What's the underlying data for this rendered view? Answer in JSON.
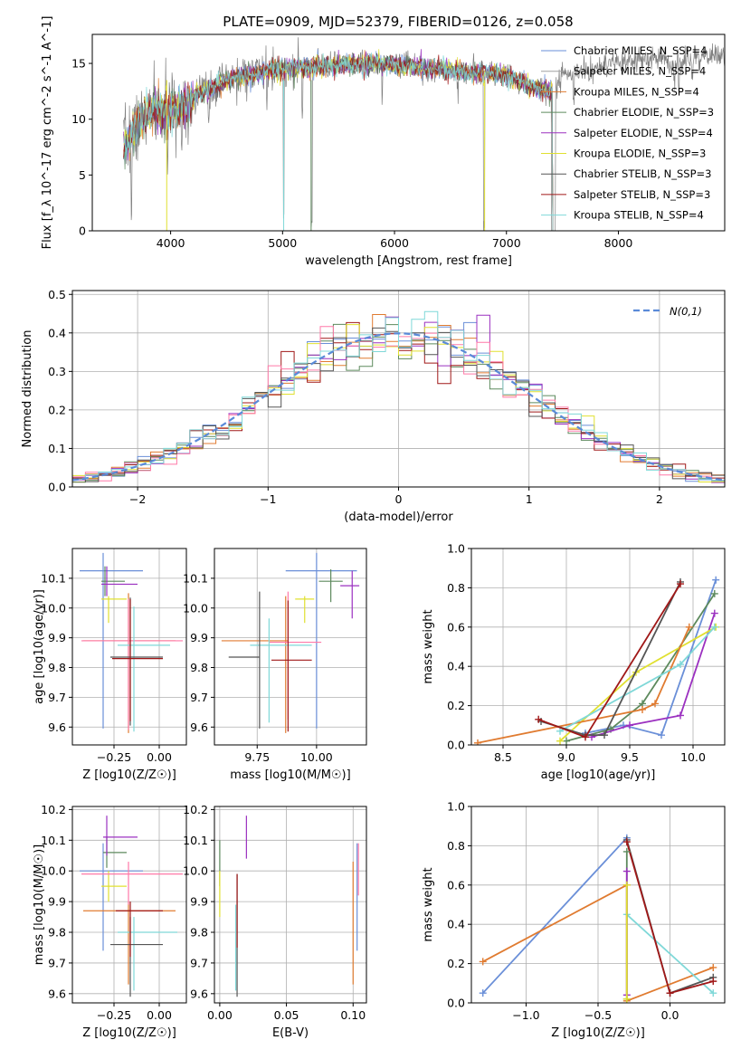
{
  "figure": {
    "title": "PLATE=0909, MJD=52379, FIBERID=0126, z=0.058"
  },
  "chart_data": [
    {
      "type": "line",
      "name": "spectrum",
      "xlabel": "wavelength [Angstrom, rest frame]",
      "ylabel": "Flux [f_λ 10^-17 erg cm^-2 s^-1 A^-1]",
      "xlim": [
        3300,
        8950
      ],
      "ylim": [
        0,
        17.6
      ],
      "xticks": [
        4000,
        5000,
        6000,
        7000,
        8000
      ],
      "yticks": [
        0,
        5,
        10,
        15
      ],
      "grid": false,
      "legend_position": "top-right",
      "continuum_knots": {
        "x": [
          3570,
          3650,
          3750,
          3850,
          3950,
          4050,
          4200,
          4400,
          4600,
          4800,
          5000,
          5200,
          5500,
          5800,
          6100,
          6400,
          6700,
          7000,
          7100,
          7200,
          7400,
          7430
        ],
        "y": [
          7.5,
          8.5,
          10.0,
          11.0,
          10.5,
          11.0,
          12.0,
          13.0,
          13.8,
          14.2,
          14.5,
          14.6,
          14.8,
          15.0,
          14.8,
          14.5,
          14.2,
          14.0,
          13.5,
          13.0,
          12.5,
          12.5
        ]
      },
      "data_only_knots": {
        "x": [
          7430,
          7500,
          7800,
          8000,
          8200,
          8400,
          8500,
          8700,
          8950
        ],
        "y": [
          12.5,
          14.0,
          14.5,
          15.0,
          15.2,
          15.5,
          15.0,
          15.5,
          15.8
        ]
      },
      "absorption_dips": [
        {
          "x": 5010,
          "depth": 14.0
        },
        {
          "x": 5260,
          "depth": 14.0
        },
        {
          "x": 6800,
          "depth": 14.0
        },
        {
          "x": 3650,
          "depth": 8.5
        },
        {
          "x": 3970,
          "depth": 4.0
        },
        {
          "x": 4100,
          "depth": 3.0
        },
        {
          "x": 4340,
          "depth": 2.5
        },
        {
          "x": 4860,
          "depth": 3.0
        },
        {
          "x": 5175,
          "depth": 4.0
        },
        {
          "x": 5890,
          "depth": 2.5
        },
        {
          "x": 6563,
          "depth": 2.0
        },
        {
          "x": 7600,
          "depth": 3.0
        },
        {
          "x": 8500,
          "depth": 2.0
        },
        {
          "x": 8540,
          "depth": 2.0
        },
        {
          "x": 8660,
          "depth": 2.0
        }
      ],
      "legend": [
        "Chabrier MILES, N_SSP=4",
        "Salpeter MILES, N_SSP=4",
        "Kroupa MILES, N_SSP=4",
        "Chabrier ELODIE, N_SSP=3",
        "Salpeter ELODIE, N_SSP=4",
        "Kroupa ELODIE, N_SSP=3",
        "Chabrier STELIB, N_SSP=3",
        "Salpeter STELIB, N_SSP=3",
        "Kroupa STELIB, N_SSP=4"
      ],
      "series_colors": [
        "#6a8fd8",
        "#a0a0a0",
        "#e07b30",
        "#5d8a5d",
        "#9b30c0",
        "#e0e030",
        "#555555",
        "#a01818",
        "#7fd8d8"
      ]
    },
    {
      "type": "histogram",
      "name": "residuals",
      "xlabel": "(data-model)/error",
      "ylabel": "Normed distribution",
      "xlim": [
        -2.5,
        2.5
      ],
      "ylim": [
        0,
        0.51
      ],
      "xticks": [
        -2,
        -1,
        0,
        1,
        2
      ],
      "yticks": [
        0.0,
        0.1,
        0.2,
        0.3,
        0.4,
        0.5
      ],
      "grid": true,
      "bin_width": 0.1,
      "reference_curve": {
        "label": "N(0,1)",
        "type": "gaussian",
        "mean": 0,
        "sigma": 1,
        "color": "#5a8ad8"
      },
      "legend_position": "top-right"
    },
    {
      "type": "scatter",
      "name": "age-vs-Z",
      "xlabel": "Z [log10(Z/Z☉)]",
      "ylabel": "age [log10(age/yr)]",
      "xlim": [
        -0.48,
        0.15
      ],
      "ylim": [
        9.54,
        10.2
      ],
      "xticks": [
        -0.25,
        0.0
      ],
      "yticks": [
        9.6,
        9.7,
        9.8,
        9.9,
        10.0,
        10.1
      ],
      "grid": true,
      "errorbars": [
        {
          "x": -0.31,
          "y": 10.125,
          "xerr": [
            0.13,
            0.22
          ],
          "yerr": [
            0.53,
            0.06
          ],
          "color": "#6a8fd8"
        },
        {
          "x": -0.3,
          "y": 10.09,
          "xerr": [
            0.02,
            0.11
          ],
          "yerr": [
            0.05,
            0.05
          ],
          "color": "#5d8a5d"
        },
        {
          "x": -0.29,
          "y": 10.08,
          "xerr": [
            0.03,
            0.17
          ],
          "yerr": [
            0.04,
            0.06
          ],
          "color": "#9b30c0"
        },
        {
          "x": -0.28,
          "y": 10.03,
          "xerr": [
            0.04,
            0.1
          ],
          "yerr": [
            0.08,
            0.01
          ],
          "color": "#e0e030"
        },
        {
          "x": -0.17,
          "y": 9.89,
          "xerr": [
            0.25,
            0.26
          ],
          "yerr": [
            0.31,
            0.16
          ],
          "color": "#e07b30"
        },
        {
          "x": -0.17,
          "y": 9.89,
          "xerr": [
            0.26,
            0.3
          ],
          "yerr": [
            0.3,
            0.14
          ],
          "color": "#ff79a8"
        },
        {
          "x": -0.14,
          "y": 9.875,
          "xerr": [
            0.09,
            0.2
          ],
          "yerr": [
            0.29,
            0.13
          ],
          "color": "#7fd8d8"
        },
        {
          "x": -0.16,
          "y": 9.835,
          "xerr": [
            0.11,
            0.18
          ],
          "yerr": [
            0.23,
            0.2
          ],
          "color": "#555555"
        },
        {
          "x": -0.16,
          "y": 9.83,
          "xerr": [
            0.1,
            0.18
          ],
          "yerr": [
            0.21,
            0.2
          ],
          "color": "#a01818"
        }
      ]
    },
    {
      "type": "scatter",
      "name": "age-vs-mass",
      "xlabel": "mass [log10(M/M☉)]",
      "ylabel": "",
      "xlim": [
        9.57,
        10.21
      ],
      "ylim": [
        9.54,
        10.2
      ],
      "xticks": [
        9.75,
        10.0
      ],
      "yticks": [
        9.6,
        9.7,
        9.8,
        9.9,
        10.0,
        10.1
      ],
      "grid": true,
      "errorbars": [
        {
          "x": 10.0,
          "y": 10.125,
          "xerr": [
            0.13,
            0.17
          ],
          "yerr": [
            0.53,
            0.06
          ],
          "color": "#6a8fd8"
        },
        {
          "x": 10.06,
          "y": 10.09,
          "xerr": [
            0.05,
            0.05
          ],
          "yerr": [
            0.07,
            0.04
          ],
          "color": "#5d8a5d"
        },
        {
          "x": 10.15,
          "y": 10.075,
          "xerr": [
            0.05,
            0.03
          ],
          "yerr": [
            0.11,
            0.05
          ],
          "color": "#9b30c0"
        },
        {
          "x": 9.95,
          "y": 10.03,
          "xerr": [
            0.04,
            0.04
          ],
          "yerr": [
            0.08,
            0.01
          ],
          "color": "#e0e030"
        },
        {
          "x": 9.87,
          "y": 9.89,
          "xerr": [
            0.27,
            0.01
          ],
          "yerr": [
            0.31,
            0.15
          ],
          "color": "#e07b30"
        },
        {
          "x": 9.88,
          "y": 9.885,
          "xerr": [
            0.08,
            0.14
          ],
          "yerr": [
            0.26,
            0.17
          ],
          "color": "#ff79a8"
        },
        {
          "x": 9.8,
          "y": 9.875,
          "xerr": [
            0.08,
            0.18
          ],
          "yerr": [
            0.26,
            0.09
          ],
          "color": "#7fd8d8"
        },
        {
          "x": 9.76,
          "y": 9.835,
          "xerr": [
            0.13,
            0.0
          ],
          "yerr": [
            0.24,
            0.22
          ],
          "color": "#555555"
        },
        {
          "x": 9.88,
          "y": 9.825,
          "xerr": [
            0.07,
            0.1
          ],
          "yerr": [
            0.24,
            0.2
          ],
          "color": "#a01818"
        }
      ]
    },
    {
      "type": "line",
      "name": "massweight-vs-age",
      "xlabel": "age [log10(age/yr)]",
      "ylabel": "mass weight",
      "xlim": [
        8.25,
        10.25
      ],
      "ylim": [
        0,
        1
      ],
      "xticks": [
        8.5,
        9.0,
        9.5,
        10.0
      ],
      "yticks": [
        0.0,
        0.2,
        0.4,
        0.6,
        0.8,
        1.0
      ],
      "grid": true,
      "series": [
        {
          "color": "#6a8fd8",
          "points": [
            [
              9.15,
              0.06
            ],
            [
              9.45,
              0.1
            ],
            [
              9.75,
              0.05
            ],
            [
              10.18,
              0.84
            ]
          ]
        },
        {
          "color": "#5d8a5d",
          "points": [
            [
              9.0,
              0.02
            ],
            [
              9.35,
              0.08
            ],
            [
              9.6,
              0.21
            ],
            [
              10.17,
              0.77
            ]
          ]
        },
        {
          "color": "#9b30c0",
          "points": [
            [
              9.2,
              0.04
            ],
            [
              9.5,
              0.1
            ],
            [
              9.9,
              0.15
            ],
            [
              10.17,
              0.67
            ]
          ]
        },
        {
          "color": "#e0e030",
          "points": [
            [
              8.95,
              0.02
            ],
            [
              9.55,
              0.37
            ],
            [
              10.18,
              0.6
            ]
          ]
        },
        {
          "color": "#e07b30",
          "points": [
            [
              8.3,
              0.01
            ],
            [
              9.6,
              0.18
            ],
            [
              9.7,
              0.21
            ],
            [
              9.97,
              0.6
            ]
          ]
        },
        {
          "color": "#7fd8d8",
          "points": [
            [
              8.95,
              0.07
            ],
            [
              9.9,
              0.41
            ],
            [
              10.17,
              0.6
            ]
          ]
        },
        {
          "color": "#555555",
          "points": [
            [
              8.8,
              0.12
            ],
            [
              9.15,
              0.05
            ],
            [
              9.3,
              0.05
            ],
            [
              9.9,
              0.83
            ]
          ]
        },
        {
          "color": "#a01818",
          "points": [
            [
              8.78,
              0.13
            ],
            [
              9.15,
              0.04
            ],
            [
              9.9,
              0.82
            ]
          ]
        }
      ]
    },
    {
      "type": "scatter",
      "name": "mass-vs-Z",
      "xlabel": "Z [log10(Z/Z☉)]",
      "ylabel": "mass [log10(M/M☉)]",
      "xlim": [
        -0.48,
        0.15
      ],
      "ylim": [
        9.57,
        10.21
      ],
      "xticks": [
        -0.25,
        0.0
      ],
      "yticks": [
        9.6,
        9.7,
        9.8,
        9.9,
        10.0,
        10.1,
        10.2
      ],
      "grid": true,
      "errorbars": [
        {
          "x": -0.31,
          "y": 10.0,
          "xerr": [
            0.13,
            0.22
          ],
          "yerr": [
            0.26,
            0.09
          ],
          "color": "#6a8fd8"
        },
        {
          "x": -0.29,
          "y": 10.06,
          "xerr": [
            0.02,
            0.11
          ],
          "yerr": [
            0.05,
            0.05
          ],
          "color": "#5d8a5d"
        },
        {
          "x": -0.29,
          "y": 10.11,
          "xerr": [
            0.02,
            0.17
          ],
          "yerr": [
            0.06,
            0.07
          ],
          "color": "#9b30c0"
        },
        {
          "x": -0.28,
          "y": 9.95,
          "xerr": [
            0.04,
            0.1
          ],
          "yerr": [
            0.05,
            0.05
          ],
          "color": "#e0e030"
        },
        {
          "x": -0.17,
          "y": 9.87,
          "xerr": [
            0.25,
            0.26
          ],
          "yerr": [
            0.24,
            0.03
          ],
          "color": "#e07b30"
        },
        {
          "x": -0.17,
          "y": 9.99,
          "xerr": [
            0.26,
            0.3
          ],
          "yerr": [
            0.1,
            0.04
          ],
          "color": "#ff79a8"
        },
        {
          "x": -0.14,
          "y": 9.8,
          "xerr": [
            0.09,
            0.24
          ],
          "yerr": [
            0.19,
            0.05
          ],
          "color": "#7fd8d8"
        },
        {
          "x": -0.16,
          "y": 9.76,
          "xerr": [
            0.11,
            0.18
          ],
          "yerr": [
            0.17,
            0.09
          ],
          "color": "#555555"
        },
        {
          "x": -0.16,
          "y": 9.87,
          "xerr": [
            0.08,
            0.18
          ],
          "yerr": [
            0.15,
            0.03
          ],
          "color": "#a01818"
        }
      ]
    },
    {
      "type": "scatter",
      "name": "mass-vs-EBV",
      "xlabel": "E(B-V)",
      "ylabel": "",
      "xlim": [
        -0.004,
        0.11
      ],
      "ylim": [
        9.57,
        10.21
      ],
      "xticks": [
        0.0,
        0.05,
        0.1
      ],
      "yticks": [
        9.6,
        9.7,
        9.8,
        9.9,
        10.0,
        10.1,
        10.2
      ],
      "grid": true,
      "errorbars": [
        {
          "x": 0.0,
          "y": 10.05,
          "xerr": [
            0,
            0
          ],
          "yerr": [
            0.1,
            0.05
          ],
          "color": "#5d8a5d"
        },
        {
          "x": 0.0,
          "y": 9.93,
          "xerr": [
            0,
            0
          ],
          "yerr": [
            0.08,
            0.07
          ],
          "color": "#e0e030"
        },
        {
          "x": 0.012,
          "y": 9.75,
          "xerr": [
            0,
            0
          ],
          "yerr": [
            0.14,
            0.14
          ],
          "color": "#7fd8d8"
        },
        {
          "x": 0.013,
          "y": 9.78,
          "xerr": [
            0,
            0
          ],
          "yerr": [
            0.19,
            0.21
          ],
          "color": "#555555"
        },
        {
          "x": 0.013,
          "y": 9.85,
          "xerr": [
            0,
            0
          ],
          "yerr": [
            0.1,
            0.14
          ],
          "color": "#a01818"
        },
        {
          "x": 0.02,
          "y": 10.11,
          "xerr": [
            0,
            0
          ],
          "yerr": [
            0.07,
            0.07
          ],
          "color": "#9b30c0"
        },
        {
          "x": 0.1,
          "y": 9.84,
          "xerr": [
            0,
            0
          ],
          "yerr": [
            0.21,
            0.19
          ],
          "color": "#e07b30"
        },
        {
          "x": 0.103,
          "y": 9.96,
          "xerr": [
            0,
            0
          ],
          "yerr": [
            0.22,
            0.13
          ],
          "color": "#6a8fd8"
        },
        {
          "x": 0.104,
          "y": 9.99,
          "xerr": [
            0,
            0
          ],
          "yerr": [
            0.07,
            0.1
          ],
          "color": "#ff79a8"
        }
      ]
    },
    {
      "type": "line",
      "name": "massweight-vs-Z",
      "xlabel": "Z [log10(Z/Z☉)]",
      "ylabel": "mass weight",
      "xlim": [
        -1.38,
        0.38
      ],
      "ylim": [
        0,
        1
      ],
      "xticks": [
        -1.0,
        -0.5,
        0.0
      ],
      "yticks": [
        0.0,
        0.2,
        0.4,
        0.6,
        0.8,
        1.0
      ],
      "grid": true,
      "series": [
        {
          "color": "#6a8fd8",
          "points": [
            [
              -1.3,
              0.05
            ],
            [
              -0.3,
              0.84
            ]
          ]
        },
        {
          "color": "#e07b30",
          "points": [
            [
              -1.3,
              0.21
            ],
            [
              -0.3,
              0.6
            ],
            [
              -0.3,
              0.01
            ],
            [
              0.3,
              0.18
            ]
          ]
        },
        {
          "color": "#7fd8d8",
          "points": [
            [
              -0.3,
              0.45
            ],
            [
              0.3,
              0.05
            ]
          ]
        },
        {
          "color": "#555555",
          "points": [
            [
              -0.3,
              0.83
            ],
            [
              0.0,
              0.05
            ],
            [
              0.3,
              0.13
            ]
          ]
        },
        {
          "color": "#a01818",
          "points": [
            [
              -0.3,
              0.82
            ],
            [
              0.0,
              0.05
            ],
            [
              0.3,
              0.11
            ]
          ]
        },
        {
          "color": "#5d8a5d",
          "points": [
            [
              -0.3,
              0.02
            ],
            [
              -0.3,
              0.77
            ]
          ]
        },
        {
          "color": "#9b30c0",
          "points": [
            [
              -0.3,
              0.04
            ],
            [
              -0.3,
              0.67
            ]
          ]
        },
        {
          "color": "#e0e030",
          "points": [
            [
              -0.3,
              0.02
            ],
            [
              -0.3,
              0.6
            ]
          ]
        }
      ]
    }
  ]
}
